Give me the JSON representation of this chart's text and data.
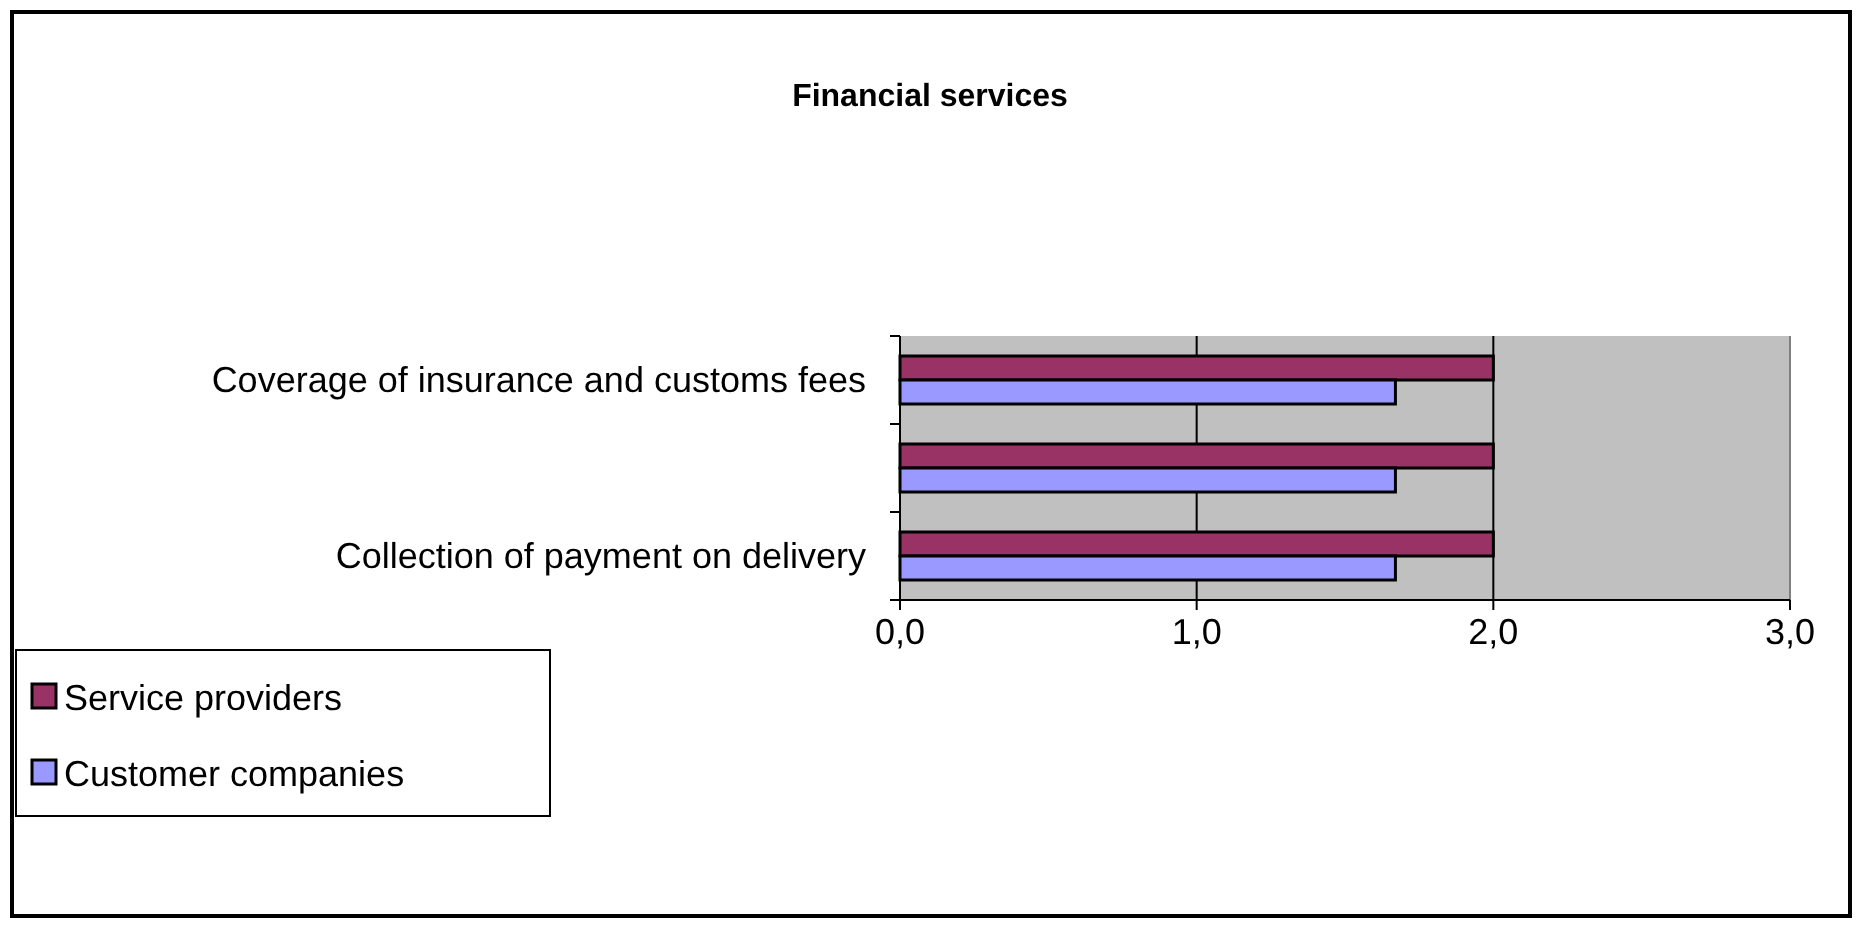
{
  "chart_data": {
    "type": "bar",
    "orientation": "horizontal",
    "title": "Financial services",
    "categories": [
      "Coverage of insurance and customs fees",
      null,
      "Collection of payment on delivery"
    ],
    "series": [
      {
        "name": "Service providers",
        "color": "#993366",
        "values": [
          2.0,
          2.0,
          2.0
        ]
      },
      {
        "name": "Customer companies",
        "color": "#9999ff",
        "values": [
          1.67,
          1.67,
          1.67
        ]
      }
    ],
    "xlim": [
      0,
      3
    ],
    "xticks": [
      {
        "value": 0,
        "label": "0,0"
      },
      {
        "value": 1,
        "label": "1,0"
      },
      {
        "value": 2,
        "label": "2,0"
      },
      {
        "value": 3,
        "label": "3,0"
      }
    ],
    "grid": "x",
    "legend": "bottom left"
  }
}
